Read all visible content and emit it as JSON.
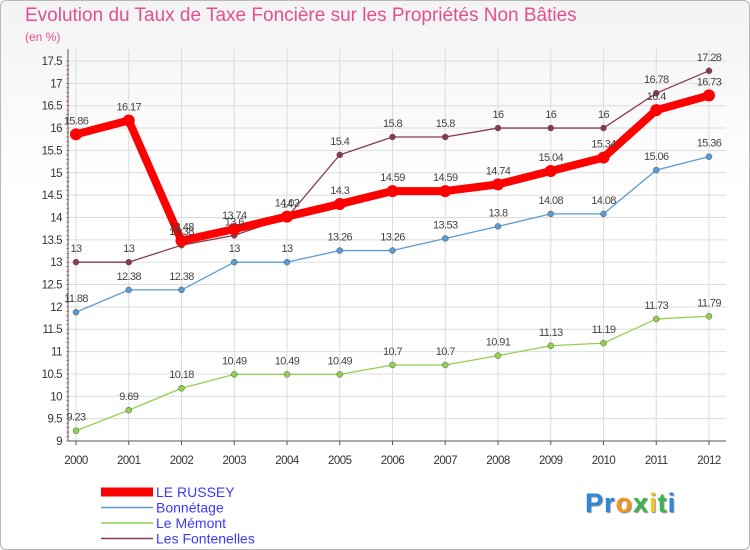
{
  "chart_data": {
    "type": "line",
    "title": "Evolution du Taux de Taxe Foncière sur les Propriétés Non Bâties",
    "unit_label": "(en %)",
    "x": [
      "2000",
      "2001",
      "2002",
      "2003",
      "2004",
      "2005",
      "2006",
      "2007",
      "2008",
      "2009",
      "2010",
      "2011",
      "2012"
    ],
    "ylim": [
      9,
      17.5
    ],
    "y_ticks": [
      "9",
      "9.5",
      "10",
      "10.5",
      "11",
      "11.5",
      "12",
      "12.5",
      "13",
      "13.5",
      "14",
      "14.5",
      "15",
      "15.5",
      "16",
      "16.5",
      "17",
      "17.5"
    ],
    "grid": true,
    "legend_position": "bottom-left",
    "series": [
      {
        "name": "LE RUSSEY",
        "color": "#ff0000",
        "values": [
          15.86,
          16.17,
          13.48,
          13.74,
          14.02,
          14.3,
          14.59,
          14.59,
          14.74,
          15.04,
          15.34,
          16.4,
          16.73
        ]
      },
      {
        "name": "Bonnétage",
        "color": "#5b9bd5",
        "values": [
          11.88,
          12.38,
          12.38,
          13,
          13,
          13.26,
          13.26,
          13.53,
          13.8,
          14.08,
          14.08,
          15.06,
          15.36
        ]
      },
      {
        "name": "Le Mémont",
        "color": "#92d050",
        "values": [
          9.23,
          9.69,
          10.18,
          10.49,
          10.49,
          10.49,
          10.7,
          10.7,
          10.91,
          11.13,
          11.19,
          11.73,
          11.79
        ]
      },
      {
        "name": "Les Fontenelles",
        "color": "#8b3a4a",
        "values": [
          13,
          13,
          13.38,
          13.6,
          14,
          15.4,
          15.8,
          15.8,
          16,
          16,
          16,
          16.78,
          17.28
        ]
      }
    ]
  },
  "logo": {
    "letters": [
      {
        "ch": "P",
        "color": "#2e86de"
      },
      {
        "ch": "r",
        "color": "#2e86de"
      },
      {
        "ch": "o",
        "color": "#f7941d"
      },
      {
        "ch": "x",
        "color": "#39b54a"
      },
      {
        "ch": "i",
        "color": "#f7c81d"
      },
      {
        "ch": "t",
        "color": "#39b54a"
      },
      {
        "ch": "i",
        "color": "#2e86de"
      }
    ]
  }
}
